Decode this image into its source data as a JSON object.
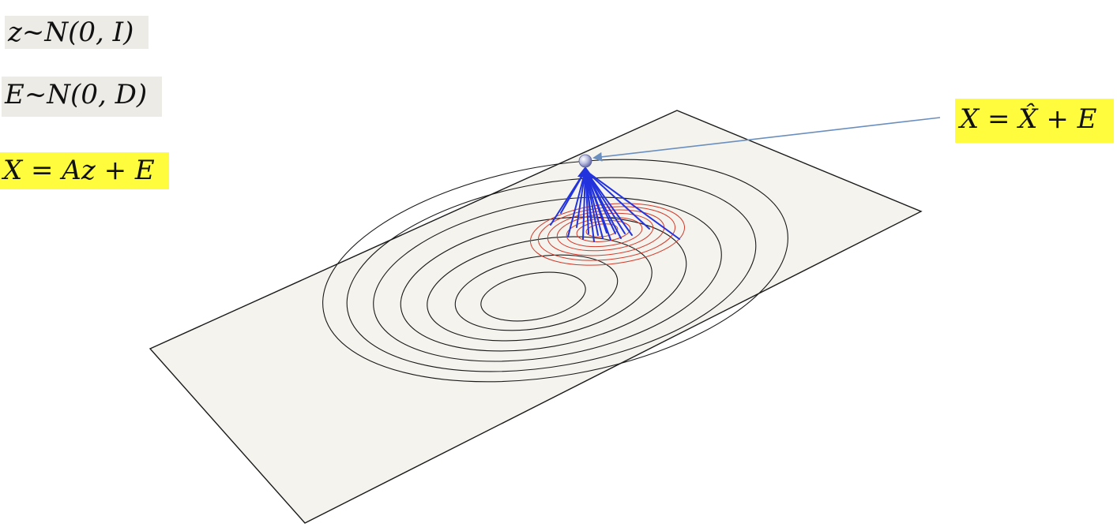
{
  "equations": {
    "latent_prior": "z~N(0, I)",
    "noise_prior": "E~N(0, D)",
    "generative_model": "X = Az + E",
    "reconstruction": "X = X̂ + E"
  },
  "colors": {
    "plane_fill": "#f4f3ee",
    "plane_edge": "#1a1a1a",
    "prior_contours": "#1a1a1a",
    "posterior_contours": "#d23a2a",
    "sample_lines": "#2233dd",
    "pointer_arrow": "#6a8fbf",
    "highlight": "#fffb3d",
    "gray_box": "#ecebe6"
  }
}
